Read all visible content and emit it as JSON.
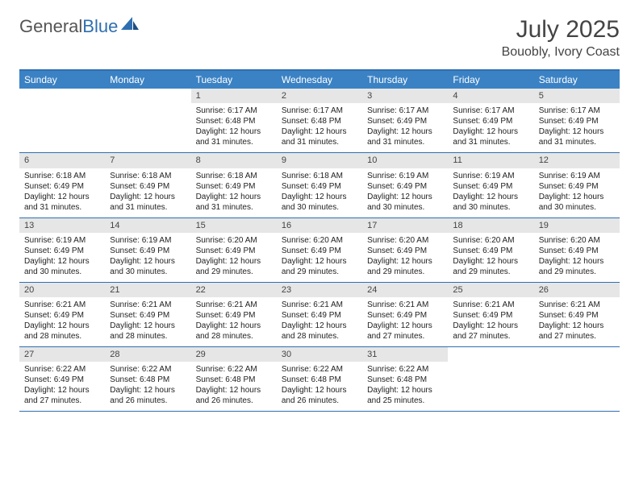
{
  "brand": {
    "part1": "General",
    "part2": "Blue"
  },
  "title": "July 2025",
  "location": "Bouobly, Ivory Coast",
  "colors": {
    "header_bg": "#3b82c4",
    "border": "#2f6fb0",
    "daynum_bg": "#e6e6e6",
    "text": "#222222",
    "title_text": "#444444"
  },
  "day_labels": [
    "Sunday",
    "Monday",
    "Tuesday",
    "Wednesday",
    "Thursday",
    "Friday",
    "Saturday"
  ],
  "weeks": [
    [
      {
        "empty": true
      },
      {
        "empty": true
      },
      {
        "n": "1",
        "sunrise": "Sunrise: 6:17 AM",
        "sunset": "Sunset: 6:48 PM",
        "daylight": "Daylight: 12 hours and 31 minutes."
      },
      {
        "n": "2",
        "sunrise": "Sunrise: 6:17 AM",
        "sunset": "Sunset: 6:48 PM",
        "daylight": "Daylight: 12 hours and 31 minutes."
      },
      {
        "n": "3",
        "sunrise": "Sunrise: 6:17 AM",
        "sunset": "Sunset: 6:49 PM",
        "daylight": "Daylight: 12 hours and 31 minutes."
      },
      {
        "n": "4",
        "sunrise": "Sunrise: 6:17 AM",
        "sunset": "Sunset: 6:49 PM",
        "daylight": "Daylight: 12 hours and 31 minutes."
      },
      {
        "n": "5",
        "sunrise": "Sunrise: 6:17 AM",
        "sunset": "Sunset: 6:49 PM",
        "daylight": "Daylight: 12 hours and 31 minutes."
      }
    ],
    [
      {
        "n": "6",
        "sunrise": "Sunrise: 6:18 AM",
        "sunset": "Sunset: 6:49 PM",
        "daylight": "Daylight: 12 hours and 31 minutes."
      },
      {
        "n": "7",
        "sunrise": "Sunrise: 6:18 AM",
        "sunset": "Sunset: 6:49 PM",
        "daylight": "Daylight: 12 hours and 31 minutes."
      },
      {
        "n": "8",
        "sunrise": "Sunrise: 6:18 AM",
        "sunset": "Sunset: 6:49 PM",
        "daylight": "Daylight: 12 hours and 31 minutes."
      },
      {
        "n": "9",
        "sunrise": "Sunrise: 6:18 AM",
        "sunset": "Sunset: 6:49 PM",
        "daylight": "Daylight: 12 hours and 30 minutes."
      },
      {
        "n": "10",
        "sunrise": "Sunrise: 6:19 AM",
        "sunset": "Sunset: 6:49 PM",
        "daylight": "Daylight: 12 hours and 30 minutes."
      },
      {
        "n": "11",
        "sunrise": "Sunrise: 6:19 AM",
        "sunset": "Sunset: 6:49 PM",
        "daylight": "Daylight: 12 hours and 30 minutes."
      },
      {
        "n": "12",
        "sunrise": "Sunrise: 6:19 AM",
        "sunset": "Sunset: 6:49 PM",
        "daylight": "Daylight: 12 hours and 30 minutes."
      }
    ],
    [
      {
        "n": "13",
        "sunrise": "Sunrise: 6:19 AM",
        "sunset": "Sunset: 6:49 PM",
        "daylight": "Daylight: 12 hours and 30 minutes."
      },
      {
        "n": "14",
        "sunrise": "Sunrise: 6:19 AM",
        "sunset": "Sunset: 6:49 PM",
        "daylight": "Daylight: 12 hours and 30 minutes."
      },
      {
        "n": "15",
        "sunrise": "Sunrise: 6:20 AM",
        "sunset": "Sunset: 6:49 PM",
        "daylight": "Daylight: 12 hours and 29 minutes."
      },
      {
        "n": "16",
        "sunrise": "Sunrise: 6:20 AM",
        "sunset": "Sunset: 6:49 PM",
        "daylight": "Daylight: 12 hours and 29 minutes."
      },
      {
        "n": "17",
        "sunrise": "Sunrise: 6:20 AM",
        "sunset": "Sunset: 6:49 PM",
        "daylight": "Daylight: 12 hours and 29 minutes."
      },
      {
        "n": "18",
        "sunrise": "Sunrise: 6:20 AM",
        "sunset": "Sunset: 6:49 PM",
        "daylight": "Daylight: 12 hours and 29 minutes."
      },
      {
        "n": "19",
        "sunrise": "Sunrise: 6:20 AM",
        "sunset": "Sunset: 6:49 PM",
        "daylight": "Daylight: 12 hours and 29 minutes."
      }
    ],
    [
      {
        "n": "20",
        "sunrise": "Sunrise: 6:21 AM",
        "sunset": "Sunset: 6:49 PM",
        "daylight": "Daylight: 12 hours and 28 minutes."
      },
      {
        "n": "21",
        "sunrise": "Sunrise: 6:21 AM",
        "sunset": "Sunset: 6:49 PM",
        "daylight": "Daylight: 12 hours and 28 minutes."
      },
      {
        "n": "22",
        "sunrise": "Sunrise: 6:21 AM",
        "sunset": "Sunset: 6:49 PM",
        "daylight": "Daylight: 12 hours and 28 minutes."
      },
      {
        "n": "23",
        "sunrise": "Sunrise: 6:21 AM",
        "sunset": "Sunset: 6:49 PM",
        "daylight": "Daylight: 12 hours and 28 minutes."
      },
      {
        "n": "24",
        "sunrise": "Sunrise: 6:21 AM",
        "sunset": "Sunset: 6:49 PM",
        "daylight": "Daylight: 12 hours and 27 minutes."
      },
      {
        "n": "25",
        "sunrise": "Sunrise: 6:21 AM",
        "sunset": "Sunset: 6:49 PM",
        "daylight": "Daylight: 12 hours and 27 minutes."
      },
      {
        "n": "26",
        "sunrise": "Sunrise: 6:21 AM",
        "sunset": "Sunset: 6:49 PM",
        "daylight": "Daylight: 12 hours and 27 minutes."
      }
    ],
    [
      {
        "n": "27",
        "sunrise": "Sunrise: 6:22 AM",
        "sunset": "Sunset: 6:49 PM",
        "daylight": "Daylight: 12 hours and 27 minutes."
      },
      {
        "n": "28",
        "sunrise": "Sunrise: 6:22 AM",
        "sunset": "Sunset: 6:48 PM",
        "daylight": "Daylight: 12 hours and 26 minutes."
      },
      {
        "n": "29",
        "sunrise": "Sunrise: 6:22 AM",
        "sunset": "Sunset: 6:48 PM",
        "daylight": "Daylight: 12 hours and 26 minutes."
      },
      {
        "n": "30",
        "sunrise": "Sunrise: 6:22 AM",
        "sunset": "Sunset: 6:48 PM",
        "daylight": "Daylight: 12 hours and 26 minutes."
      },
      {
        "n": "31",
        "sunrise": "Sunrise: 6:22 AM",
        "sunset": "Sunset: 6:48 PM",
        "daylight": "Daylight: 12 hours and 25 minutes."
      },
      {
        "empty": true
      },
      {
        "empty": true
      }
    ]
  ]
}
